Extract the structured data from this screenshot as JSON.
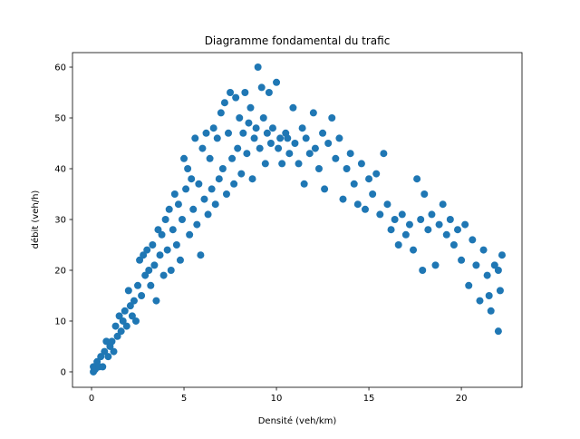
{
  "chart_data": {
    "type": "scatter",
    "title": "Diagramme fondamental du trafic",
    "x_label": "Densité (veh/km)",
    "y_label": "débit (veh/h)",
    "color": "#1f77b4",
    "x": [
      0.1,
      0.1,
      0.2,
      0.3,
      0.4,
      0.5,
      0.6,
      0.7,
      0.8,
      0.9,
      1.0,
      1.1,
      1.2,
      1.3,
      1.4,
      1.5,
      1.6,
      1.7,
      1.8,
      1.9,
      2.0,
      2.1,
      2.2,
      2.3,
      2.4,
      2.5,
      2.6,
      2.7,
      2.8,
      2.9,
      3.0,
      3.1,
      3.2,
      3.3,
      3.4,
      3.5,
      3.6,
      3.7,
      3.8,
      3.9,
      4.0,
      4.1,
      4.2,
      4.3,
      4.4,
      4.5,
      4.6,
      4.7,
      4.8,
      4.9,
      5.0,
      5.1,
      5.2,
      5.3,
      5.4,
      5.5,
      5.6,
      5.7,
      5.8,
      5.9,
      6.0,
      6.1,
      6.2,
      6.3,
      6.4,
      6.5,
      6.6,
      6.7,
      6.8,
      6.9,
      7.0,
      7.1,
      7.2,
      7.3,
      7.4,
      7.5,
      7.6,
      7.7,
      7.8,
      7.9,
      8.0,
      8.1,
      8.2,
      8.3,
      8.4,
      8.5,
      8.6,
      8.7,
      8.8,
      8.9,
      9.0,
      9.1,
      9.2,
      9.3,
      9.4,
      9.5,
      9.6,
      9.7,
      9.8,
      10.0,
      10.1,
      10.2,
      10.3,
      10.5,
      10.7,
      10.9,
      11.0,
      11.2,
      11.4,
      11.5,
      11.6,
      11.8,
      12.0,
      12.1,
      12.3,
      12.5,
      12.6,
      12.8,
      13.0,
      13.2,
      13.4,
      13.6,
      13.8,
      14.0,
      14.2,
      14.4,
      14.6,
      14.8,
      15.0,
      15.2,
      15.4,
      15.6,
      15.8,
      16.0,
      16.2,
      16.4,
      16.6,
      16.8,
      17.0,
      17.2,
      17.4,
      17.6,
      17.8,
      17.9,
      18.0,
      18.2,
      18.4,
      18.6,
      18.8,
      19.0,
      19.2,
      19.4,
      19.6,
      19.8,
      20.0,
      20.2,
      20.4,
      20.6,
      20.8,
      21.0,
      21.2,
      21.4,
      21.6,
      21.8,
      22.0,
      22.1,
      22.2,
      22.0,
      21.5,
      10.6
    ],
    "values": [
      0,
      1,
      0.5,
      2,
      1,
      3,
      1,
      4,
      6,
      3,
      5,
      6,
      4,
      9,
      7,
      11,
      8,
      10,
      12,
      9,
      16,
      13,
      11,
      14,
      10,
      17,
      22,
      15,
      23,
      19,
      24,
      20,
      17,
      25,
      21,
      14,
      28,
      23,
      27,
      19,
      30,
      24,
      32,
      20,
      28,
      35,
      25,
      33,
      22,
      30,
      42,
      36,
      40,
      27,
      38,
      32,
      46,
      29,
      37,
      23,
      44,
      34,
      47,
      31,
      42,
      36,
      48,
      33,
      46,
      38,
      51,
      40,
      53,
      35,
      47,
      55,
      42,
      37,
      54,
      44,
      50,
      39,
      47,
      55,
      43,
      49,
      52,
      38,
      46,
      48,
      60,
      44,
      56,
      50,
      41,
      47,
      55,
      45,
      48,
      57,
      44,
      46,
      41,
      47,
      43,
      52,
      45,
      41,
      48,
      37,
      46,
      43,
      51,
      44,
      40,
      47,
      36,
      45,
      50,
      42,
      46,
      34,
      40,
      43,
      37,
      33,
      41,
      32,
      38,
      35,
      39,
      31,
      43,
      33,
      28,
      30,
      25,
      31,
      27,
      29,
      24,
      38,
      30,
      20,
      35,
      28,
      31,
      21,
      29,
      33,
      27,
      30,
      25,
      28,
      22,
      29,
      17,
      26,
      21,
      14,
      24,
      19,
      12,
      21,
      8,
      16,
      23,
      20,
      15,
      46
    ],
    "xlim": [
      -1.03,
      23.28
    ],
    "ylim": [
      -3.04,
      62.86
    ],
    "xticks": [
      0,
      5,
      10,
      15,
      20
    ],
    "yticks": [
      0,
      10,
      20,
      30,
      40,
      50,
      60
    ]
  }
}
